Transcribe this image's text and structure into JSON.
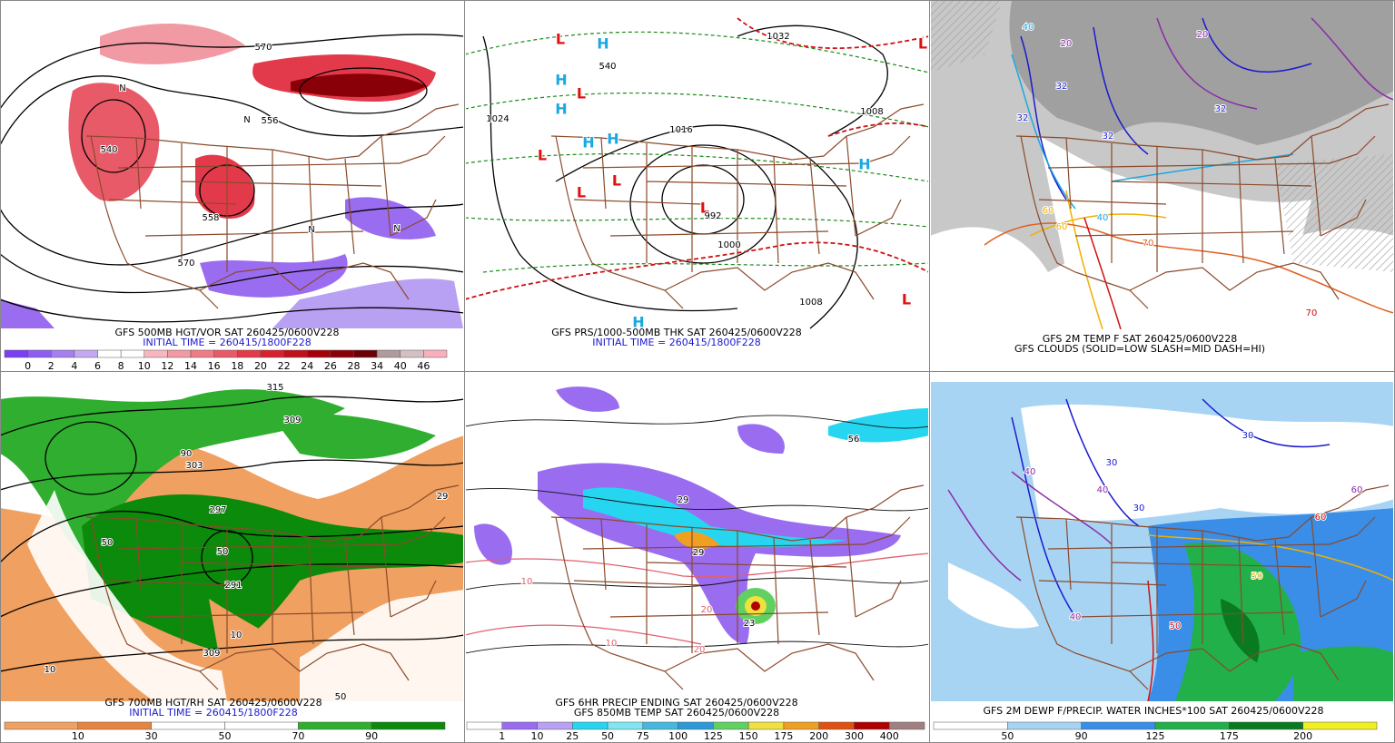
{
  "panels": [
    {
      "caption": [
        "GFS 500MB HGT/VOR SAT 260425/0600V228",
        "INITIAL TIME = 260415/1800F228"
      ],
      "labels": [
        "570",
        "556",
        "540",
        "558",
        "570",
        "N",
        "N",
        "N",
        "N"
      ],
      "colorbar": {
        "labels": [
          "0",
          "2",
          "4",
          "6",
          "8",
          "10",
          "12",
          "14",
          "16",
          "18",
          "20",
          "22",
          "24",
          "26",
          "28",
          "34",
          "40",
          "46"
        ],
        "colors": [
          "#7b3ff2",
          "#8f5cf2",
          "#a57ff0",
          "#c3a9f3",
          "#ffffff",
          "#ffffff",
          "#f7b7be",
          "#f29aa3",
          "#ee7c87",
          "#e85a68",
          "#e23a4a",
          "#d6222f",
          "#c0101c",
          "#a5000a",
          "#8a0008",
          "#6b0006",
          "#b09a9c",
          "#d4c0c2",
          "#f7b0bc"
        ]
      }
    },
    {
      "caption": [
        "GFS PRS/1000-500MB THK SAT 260425/0600V228",
        "INITIAL TIME = 260415/1800F228"
      ],
      "labels": [
        "L",
        "H",
        "L",
        "H",
        "H",
        "L",
        "H",
        "H",
        "L",
        "L",
        "L",
        "H",
        "L",
        "L",
        "H",
        "1032",
        "1024",
        "1016",
        "1008",
        "1000",
        "1008",
        "540",
        "992"
      ]
    },
    {
      "caption": [
        "GFS 2M TEMP F SAT 260425/0600V228",
        "GFS CLOUDS (SOLID=LOW SLASH=MID DASH=HI)"
      ],
      "labels": [
        "32",
        "32",
        "32",
        "32",
        "40",
        "40",
        "60",
        "60",
        "70",
        "70",
        "20",
        "20"
      ]
    },
    {
      "caption": [
        "GFS 700MB HGT/RH SAT 260425/0600V228",
        "INITIAL TIME = 260415/1800F228"
      ],
      "labels": [
        "315",
        "309",
        "303",
        "297",
        "291",
        "50",
        "90",
        "50",
        "29",
        "10",
        "309",
        "50",
        "10"
      ],
      "colorbar": {
        "labels": [
          "10",
          "30",
          "50",
          "70",
          "90"
        ],
        "colors": [
          "#f0a060",
          "#e8843f",
          "#ffffff",
          "#ffffff",
          "#2fae2f",
          "#0b8a0b"
        ]
      }
    },
    {
      "caption": [
        "GFS 6HR PRECIP ENDING SAT 260425/0600V228",
        "GFS 850MB TEMP SAT 260425/0600V228"
      ],
      "labels": [
        "29",
        "29",
        "56",
        "23",
        "10",
        "10",
        "20",
        "20"
      ],
      "colorbar": {
        "labels": [
          "1",
          "10",
          "25",
          "50",
          "75",
          "100",
          "125",
          "150",
          "175",
          "200",
          "300",
          "400"
        ],
        "colors": [
          "#ffffff",
          "#9a6cf0",
          "#b8a0f2",
          "#26d6f0",
          "#7fe6f2",
          "#46b8e0",
          "#2c9ad8",
          "#60d060",
          "#f0e040",
          "#f0a020",
          "#e05010",
          "#b00000",
          "#a08080"
        ]
      }
    },
    {
      "caption": [
        "GFS 2M DEWP F/PRECIP. WATER INCHES*100 SAT 260425/0600V228"
      ],
      "labels": [
        "30",
        "30",
        "30",
        "40",
        "40",
        "40",
        "50",
        "50",
        "60",
        "60"
      ],
      "colorbar": {
        "labels": [
          "50",
          "90",
          "125",
          "175",
          "200"
        ],
        "colors": [
          "#ffffff",
          "#a8d4f4",
          "#3a8ee8",
          "#22b04a",
          "#0a7a20",
          "#f0f020"
        ]
      }
    }
  ]
}
